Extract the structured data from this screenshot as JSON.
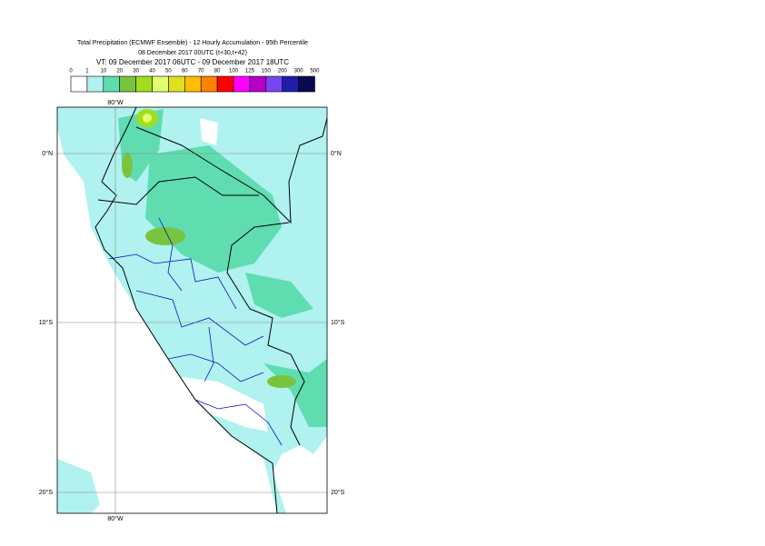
{
  "header": {
    "title": "Total Precipitation (ECMWF Ensemble) - 12 Hourly Accumulation - 95th Percentile",
    "base": "08 December 2017 00UTC (t+30,t+42)",
    "valid": "VT: 09 December 2017 06UTC - 09 December 2017 18UTC"
  },
  "legend": {
    "ticks": [
      0,
      1,
      10,
      20,
      30,
      40,
      50,
      60,
      70,
      80,
      100,
      125,
      150,
      200,
      300,
      500
    ],
    "colors": [
      "#ffffff",
      "#aff2ef",
      "#5fdcb0",
      "#78c43c",
      "#9ede1e",
      "#e4ff6e",
      "#e0e01e",
      "#ffbe00",
      "#ff8200",
      "#ff0000",
      "#ff00ff",
      "#b400c8",
      "#7846f0",
      "#1e1eaa",
      "#0a0a50"
    ]
  },
  "map": {
    "lon_labels": [
      "80°W"
    ],
    "lat_labels": [
      "0°N",
      "10°S",
      "20°S"
    ]
  }
}
